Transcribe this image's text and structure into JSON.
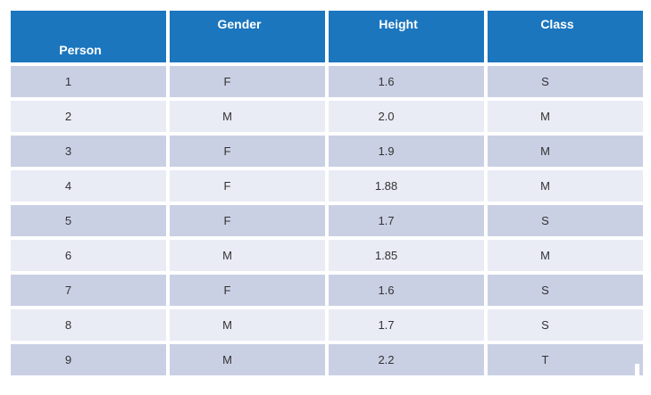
{
  "slide": {
    "background": "#FFFFFF"
  },
  "table": {
    "columns": [
      {
        "key": "person",
        "label": "Person",
        "header_align": "bottom"
      },
      {
        "key": "gender",
        "label": "Gender",
        "header_align": "top"
      },
      {
        "key": "height",
        "label": "Height",
        "header_align": "top"
      },
      {
        "key": "class",
        "label": "Class",
        "header_align": "top"
      }
    ],
    "rows": [
      {
        "person": "1",
        "gender": "F",
        "height": "1.6",
        "class": "S"
      },
      {
        "person": "2",
        "gender": "M",
        "height": "2.0",
        "class": "M"
      },
      {
        "person": "3",
        "gender": "F",
        "height": "1.9",
        "class": "M"
      },
      {
        "person": "4",
        "gender": "F",
        "height": "1.88",
        "class": "M"
      },
      {
        "person": "5",
        "gender": "F",
        "height": "1.7",
        "class": "S"
      },
      {
        "person": "6",
        "gender": "M",
        "height": "1.85",
        "class": "M"
      },
      {
        "person": "7",
        "gender": "F",
        "height": "1.6",
        "class": "S"
      },
      {
        "person": "8",
        "gender": "M",
        "height": "1.7",
        "class": "S"
      },
      {
        "person": "9",
        "gender": "M",
        "height": "2.2",
        "class": "T"
      }
    ]
  },
  "colors": {
    "header_bg": "#1B76BE",
    "header_text": "#FFFFFF",
    "row_dark": "#CAD0E4",
    "row_light": "#E9EBF5",
    "body_text": "#333333",
    "gap": "#FFFFFF"
  },
  "chart_data": {
    "type": "table",
    "title": "",
    "columns": [
      "Person",
      "Gender",
      "Height",
      "Class"
    ],
    "rows": [
      [
        "1",
        "F",
        "1.6",
        "S"
      ],
      [
        "2",
        "M",
        "2.0",
        "M"
      ],
      [
        "3",
        "F",
        "1.9",
        "M"
      ],
      [
        "4",
        "F",
        "1.88",
        "M"
      ],
      [
        "5",
        "F",
        "1.7",
        "S"
      ],
      [
        "6",
        "M",
        "1.85",
        "M"
      ],
      [
        "7",
        "F",
        "1.6",
        "S"
      ],
      [
        "8",
        "M",
        "1.7",
        "S"
      ],
      [
        "9",
        "M",
        "2.2",
        "T"
      ]
    ],
    "layout": {
      "header_style": "solid blue background, white bold labels; Person label bottom-aligned, others top-aligned",
      "banding": "alternating row fill starting dark (lavender-gray) then light",
      "grid": "white 4px gaps between all rows and columns"
    }
  }
}
